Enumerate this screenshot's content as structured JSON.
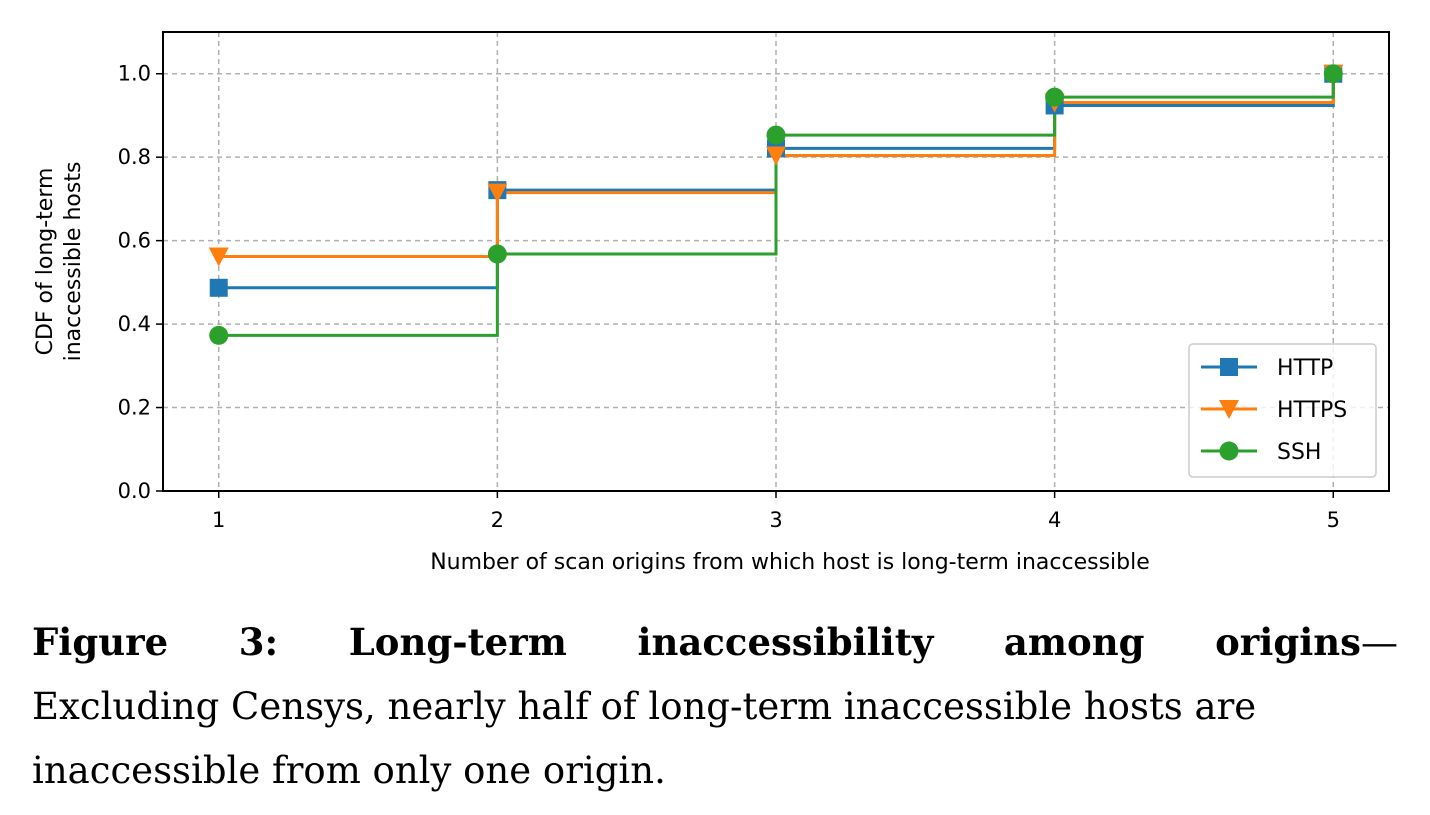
{
  "chart_data": {
    "type": "line",
    "step": "post",
    "xlabel": "Number of scan origins from which host is long-term inaccessible",
    "ylabel_lines": [
      "CDF of long-term",
      "inaccessible hosts"
    ],
    "xlim": [
      0.8,
      5.2
    ],
    "ylim": [
      0.0,
      1.1
    ],
    "x_ticks": [
      1,
      2,
      3,
      4,
      5
    ],
    "x_tick_labels": [
      "1",
      "2",
      "3",
      "4",
      "5"
    ],
    "y_ticks": [
      0.0,
      0.2,
      0.4,
      0.6,
      0.8,
      1.0
    ],
    "y_tick_labels": [
      "0.0",
      "0.2",
      "0.4",
      "0.6",
      "0.8",
      "1.0"
    ],
    "grid": true,
    "legend_position": "lower-right",
    "x": [
      1,
      2,
      3,
      4,
      5
    ],
    "series": [
      {
        "name": "HTTP",
        "marker": "square",
        "color": "#1f77b4",
        "values": [
          0.487,
          0.721,
          0.821,
          0.924,
          1.0
        ]
      },
      {
        "name": "HTTPS",
        "marker": "triangle-down",
        "color": "#ff7f0e",
        "values": [
          0.562,
          0.715,
          0.804,
          0.931,
          1.0
        ]
      },
      {
        "name": "SSH",
        "marker": "circle",
        "color": "#2ca02c",
        "values": [
          0.373,
          0.568,
          0.853,
          0.944,
          1.0
        ]
      }
    ]
  },
  "caption": {
    "title": "Figure 3: Long-term inaccessibility among origins",
    "dash": "—",
    "line1_rest": "",
    "body": "Excluding Censys, nearly half of long-term inaccessible hosts are inaccessible from only one origin."
  }
}
